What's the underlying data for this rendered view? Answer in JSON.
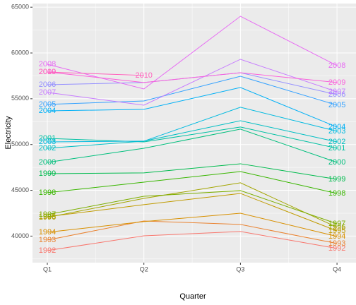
{
  "chart_data": {
    "type": "line",
    "x_label": "Quarter",
    "y_label": "Electricity",
    "categories": [
      "Q1",
      "Q2",
      "Q3",
      "Q4"
    ],
    "series": [
      {
        "name": "1992",
        "color": "#F8766D",
        "values": [
          38420,
          40030,
          40500,
          38650
        ]
      },
      {
        "name": "1993",
        "color": "#EA8331",
        "values": [
          39570,
          41650,
          41270,
          39190
        ]
      },
      {
        "name": "1994",
        "color": "#D89000",
        "values": [
          40420,
          41580,
          42500,
          39960
        ]
      },
      {
        "name": "1995",
        "color": "#C09B00",
        "values": [
          42120,
          43430,
          44660,
          40570
        ]
      },
      {
        "name": "1996",
        "color": "#A3A500",
        "values": [
          42040,
          44120,
          45820,
          40960
        ]
      },
      {
        "name": "1997",
        "color": "#7CAE00",
        "values": [
          42350,
          44350,
          44970,
          41350
        ]
      },
      {
        "name": "1998",
        "color": "#39B600",
        "values": [
          44740,
          45890,
          47050,
          44660
        ]
      },
      {
        "name": "1999",
        "color": "#00BB4E",
        "values": [
          46820,
          46900,
          47900,
          46200
        ]
      },
      {
        "name": "2000",
        "color": "#00BF7D",
        "values": [
          48050,
          49590,
          51680,
          48050
        ]
      },
      {
        "name": "2001",
        "color": "#00C1A3",
        "values": [
          50670,
          50290,
          51910,
          49590
        ]
      },
      {
        "name": "2002",
        "color": "#00BFC4",
        "values": [
          49590,
          50370,
          52600,
          50290
        ]
      },
      {
        "name": "2003",
        "color": "#00BAE0",
        "values": [
          50290,
          50370,
          54070,
          51450
        ]
      },
      {
        "name": "2004",
        "color": "#00B0F6",
        "values": [
          53680,
          53840,
          56230,
          51910
        ]
      },
      {
        "name": "2005",
        "color": "#35A2FF",
        "values": [
          54380,
          54760,
          57460,
          54300
        ]
      },
      {
        "name": "2006",
        "color": "#9590FF",
        "values": [
          56530,
          56770,
          57840,
          55450
        ]
      },
      {
        "name": "2007",
        "color": "#C77CFF",
        "values": [
          55690,
          54300,
          59310,
          55760
        ]
      },
      {
        "name": "2008",
        "color": "#E76BF3",
        "values": [
          58770,
          56070,
          64010,
          58620
        ]
      },
      {
        "name": "2009",
        "color": "#FA62DB",
        "values": [
          57920,
          56770,
          57840,
          56770
        ]
      },
      {
        "name": "2010",
        "color": "#FF62BC",
        "values": [
          57920,
          57540,
          null,
          null
        ]
      }
    ],
    "ylim": [
      37100,
      65400
    ],
    "yticks": [
      40000,
      45000,
      50000,
      55000,
      60000,
      65000
    ],
    "grid": true
  }
}
